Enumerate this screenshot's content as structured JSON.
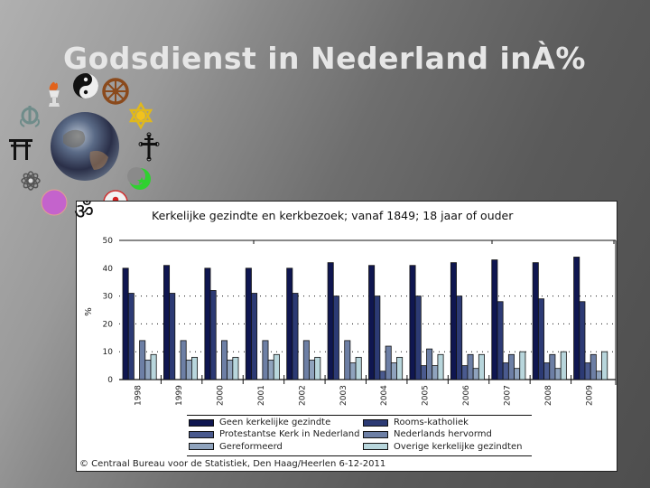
{
  "slide": {
    "title": "Godsdienst in Nederland inÀ%"
  },
  "decorations": {
    "icons": [
      "flame-chalice-icon",
      "yin-yang-icon",
      "dharma-wheel-icon",
      "khanda-icon",
      "star-of-david-icon",
      "torii-icon",
      "earth-globe-icon",
      "orthodox-cross-icon",
      "lotus-icon",
      "crescent-star-icon",
      "purple-circle-icon",
      "om-icon",
      "three-drops-icon"
    ],
    "om_glyph": "ॐ"
  },
  "chart": {
    "title": "Kerkelijke gezindte en kerkbezoek; vanaf 1849; 18 jaar of ouder",
    "ylabel": "%",
    "source": "© Centraal Bureau voor de Statistiek, Den Haag/Heerlen 6-12-2011"
  },
  "chart_data": {
    "type": "bar",
    "title": "Kerkelijke gezindte en kerkbezoek; vanaf 1849; 18 jaar of ouder",
    "xlabel": "",
    "ylabel": "%",
    "ylim": [
      0,
      50
    ],
    "yticks": [
      0,
      10,
      20,
      30,
      40,
      50
    ],
    "grid": "dotted horizontal at 10, 20, 30",
    "legend_position": "bottom",
    "categories": [
      "1998",
      "1999",
      "2000",
      "2001",
      "2002",
      "2003",
      "2004",
      "2005",
      "2006",
      "2007",
      "2008",
      "2009"
    ],
    "series": [
      {
        "name": "Geen kerkelijke gezindte",
        "color": "#0f1650",
        "values": [
          40,
          41,
          40,
          40,
          40,
          42,
          41,
          41,
          42,
          43,
          42,
          44
        ]
      },
      {
        "name": "Rooms-katholiek",
        "color": "#2c3a74",
        "values": [
          31,
          31,
          32,
          31,
          31,
          30,
          30,
          30,
          30,
          28,
          29,
          28
        ]
      },
      {
        "name": "Protestantse Kerk in Nederland",
        "color": "#4a5a8e",
        "values": [
          null,
          null,
          null,
          null,
          null,
          null,
          3,
          5,
          5,
          6,
          6,
          6
        ]
      },
      {
        "name": "Nederlands hervormd",
        "color": "#6d7fa5",
        "values": [
          14,
          14,
          14,
          14,
          14,
          14,
          12,
          11,
          9,
          9,
          9,
          9
        ]
      },
      {
        "name": "Gereformeerd",
        "color": "#8fa3bd",
        "values": [
          7,
          7,
          7,
          7,
          7,
          6,
          6,
          5,
          4,
          4,
          4,
          3
        ]
      },
      {
        "name": "Overige kerkelijke gezindten",
        "color": "#b8d6dc",
        "values": [
          9,
          8,
          8,
          9,
          8,
          8,
          8,
          9,
          9,
          10,
          10,
          10
        ]
      }
    ]
  },
  "legend": {
    "items": [
      {
        "label": "Geen kerkelijke gezindte",
        "color": "#0f1650"
      },
      {
        "label": "Rooms-katholiek",
        "color": "#2c3a74"
      },
      {
        "label": "Protestantse Kerk in Nederland",
        "color": "#4a5a8e"
      },
      {
        "label": "Nederlands hervormd",
        "color": "#6d7fa5"
      },
      {
        "label": "Gereformeerd",
        "color": "#8fa3bd"
      },
      {
        "label": "Overige kerkelijke gezindten",
        "color": "#b8d6dc"
      }
    ]
  }
}
